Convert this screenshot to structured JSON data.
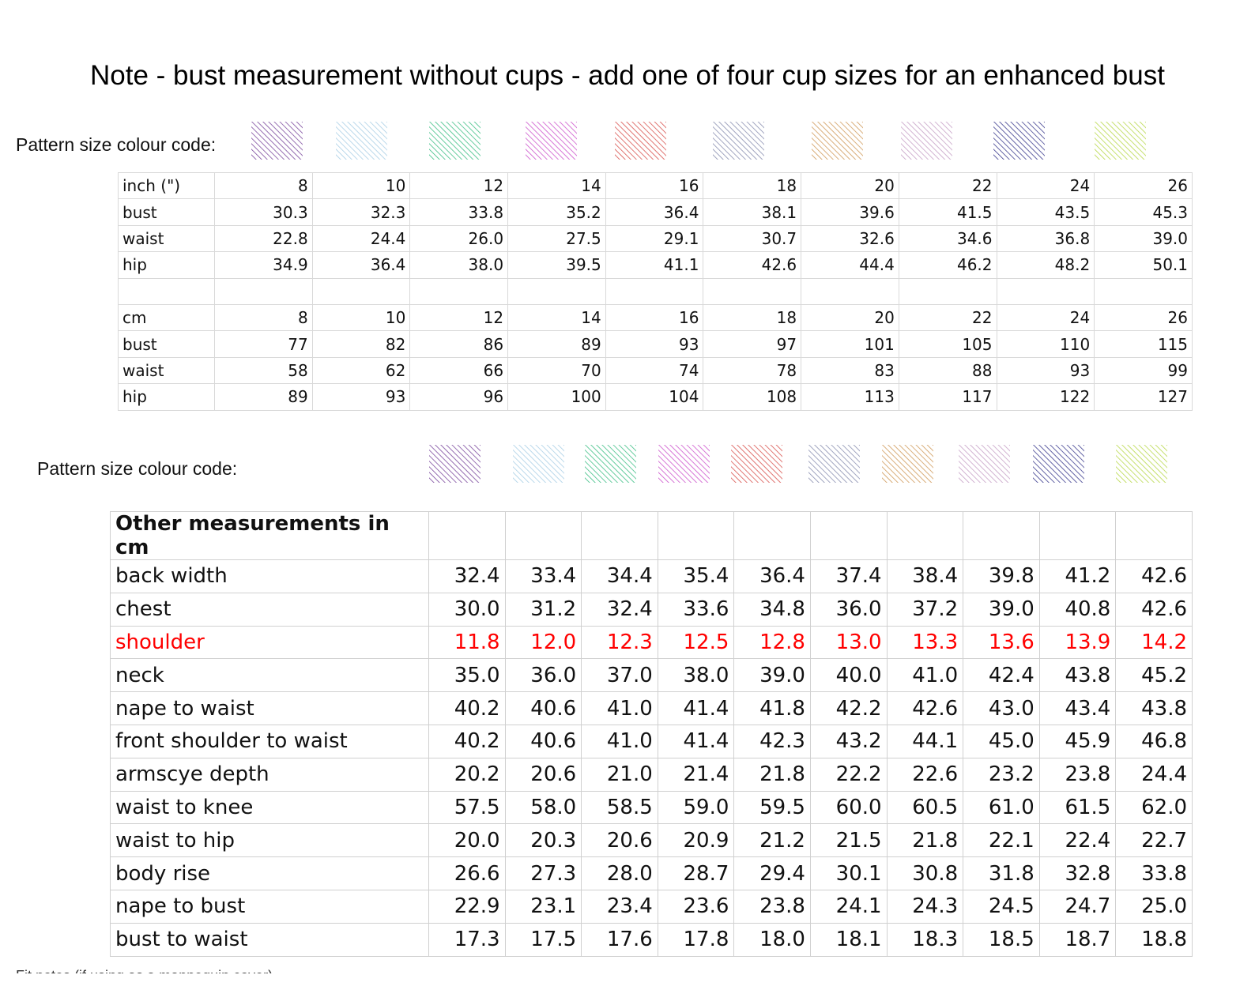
{
  "title": "Note - bust measurement without cups - add one of four cup sizes for an enhanced bust",
  "colour_code_label": "Pattern size colour  code:",
  "swatch_colors": [
    "#7b4a9e",
    "#a9cfe6",
    "#3fbf86",
    "#cc55cc",
    "#d9534f",
    "#8a8fb0",
    "#d09a5a",
    "#c6a0c6",
    "#3d3d8f",
    "#b8d84a"
  ],
  "inch_table": {
    "header": [
      "inch (\")",
      "8",
      "10",
      "12",
      "14",
      "16",
      "18",
      "20",
      "22",
      "24",
      "26"
    ],
    "rows": [
      [
        "bust",
        "30.3",
        "32.3",
        "33.8",
        "35.2",
        "36.4",
        "38.1",
        "39.6",
        "41.5",
        "43.5",
        "45.3"
      ],
      [
        "waist",
        "22.8",
        "24.4",
        "26.0",
        "27.5",
        "29.1",
        "30.7",
        "32.6",
        "34.6",
        "36.8",
        "39.0"
      ],
      [
        "hip",
        "34.9",
        "36.4",
        "38.0",
        "39.5",
        "41.1",
        "42.6",
        "44.4",
        "46.2",
        "48.2",
        "50.1"
      ]
    ]
  },
  "cm_table": {
    "header": [
      "cm",
      "8",
      "10",
      "12",
      "14",
      "16",
      "18",
      "20",
      "22",
      "24",
      "26"
    ],
    "rows": [
      [
        "bust",
        "77",
        "82",
        "86",
        "89",
        "93",
        "97",
        "101",
        "105",
        "110",
        "115"
      ],
      [
        "waist",
        "58",
        "62",
        "66",
        "70",
        "74",
        "78",
        "83",
        "88",
        "93",
        "99"
      ],
      [
        "hip",
        "89",
        "93",
        "96",
        "100",
        "104",
        "108",
        "113",
        "117",
        "122",
        "127"
      ]
    ]
  },
  "other_table": {
    "heading": "Other measurements in cm",
    "rows": [
      [
        "back width",
        "32.4",
        "33.4",
        "34.4",
        "35.4",
        "36.4",
        "37.4",
        "38.4",
        "39.8",
        "41.2",
        "42.6"
      ],
      [
        "chest",
        "30.0",
        "31.2",
        "32.4",
        "33.6",
        "34.8",
        "36.0",
        "37.2",
        "39.0",
        "40.8",
        "42.6"
      ],
      [
        "shoulder",
        "11.8",
        "12.0",
        "12.3",
        "12.5",
        "12.8",
        "13.0",
        "13.3",
        "13.6",
        "13.9",
        "14.2"
      ],
      [
        "neck",
        "35.0",
        "36.0",
        "37.0",
        "38.0",
        "39.0",
        "40.0",
        "41.0",
        "42.4",
        "43.8",
        "45.2"
      ],
      [
        "nape to waist",
        "40.2",
        "40.6",
        "41.0",
        "41.4",
        "41.8",
        "42.2",
        "42.6",
        "43.0",
        "43.4",
        "43.8"
      ],
      [
        "front shoulder to waist",
        "40.2",
        "40.6",
        "41.0",
        "41.4",
        "42.3",
        "43.2",
        "44.1",
        "45.0",
        "45.9",
        "46.8"
      ],
      [
        "armscye depth",
        "20.2",
        "20.6",
        "21.0",
        "21.4",
        "21.8",
        "22.2",
        "22.6",
        "23.2",
        "23.8",
        "24.4"
      ],
      [
        "waist to knee",
        "57.5",
        "58.0",
        "58.5",
        "59.0",
        "59.5",
        "60.0",
        "60.5",
        "61.0",
        "61.5",
        "62.0"
      ],
      [
        "waist to hip",
        "20.0",
        "20.3",
        "20.6",
        "20.9",
        "21.2",
        "21.5",
        "21.8",
        "22.1",
        "22.4",
        "22.7"
      ],
      [
        "body rise",
        "26.6",
        "27.3",
        "28.0",
        "28.7",
        "29.4",
        "30.1",
        "30.8",
        "31.8",
        "32.8",
        "33.8"
      ],
      [
        "nape to bust",
        "22.9",
        "23.1",
        "23.4",
        "23.6",
        "23.8",
        "24.1",
        "24.3",
        "24.5",
        "24.7",
        "25.0"
      ],
      [
        "bust to waist",
        "17.3",
        "17.5",
        "17.6",
        "17.8",
        "18.0",
        "18.1",
        "18.3",
        "18.5",
        "18.7",
        "18.8"
      ]
    ],
    "highlight_row": "shoulder",
    "highlight_color": "#ff0000"
  },
  "footer_note": "Fit notes (if using as a mannequin cover)"
}
